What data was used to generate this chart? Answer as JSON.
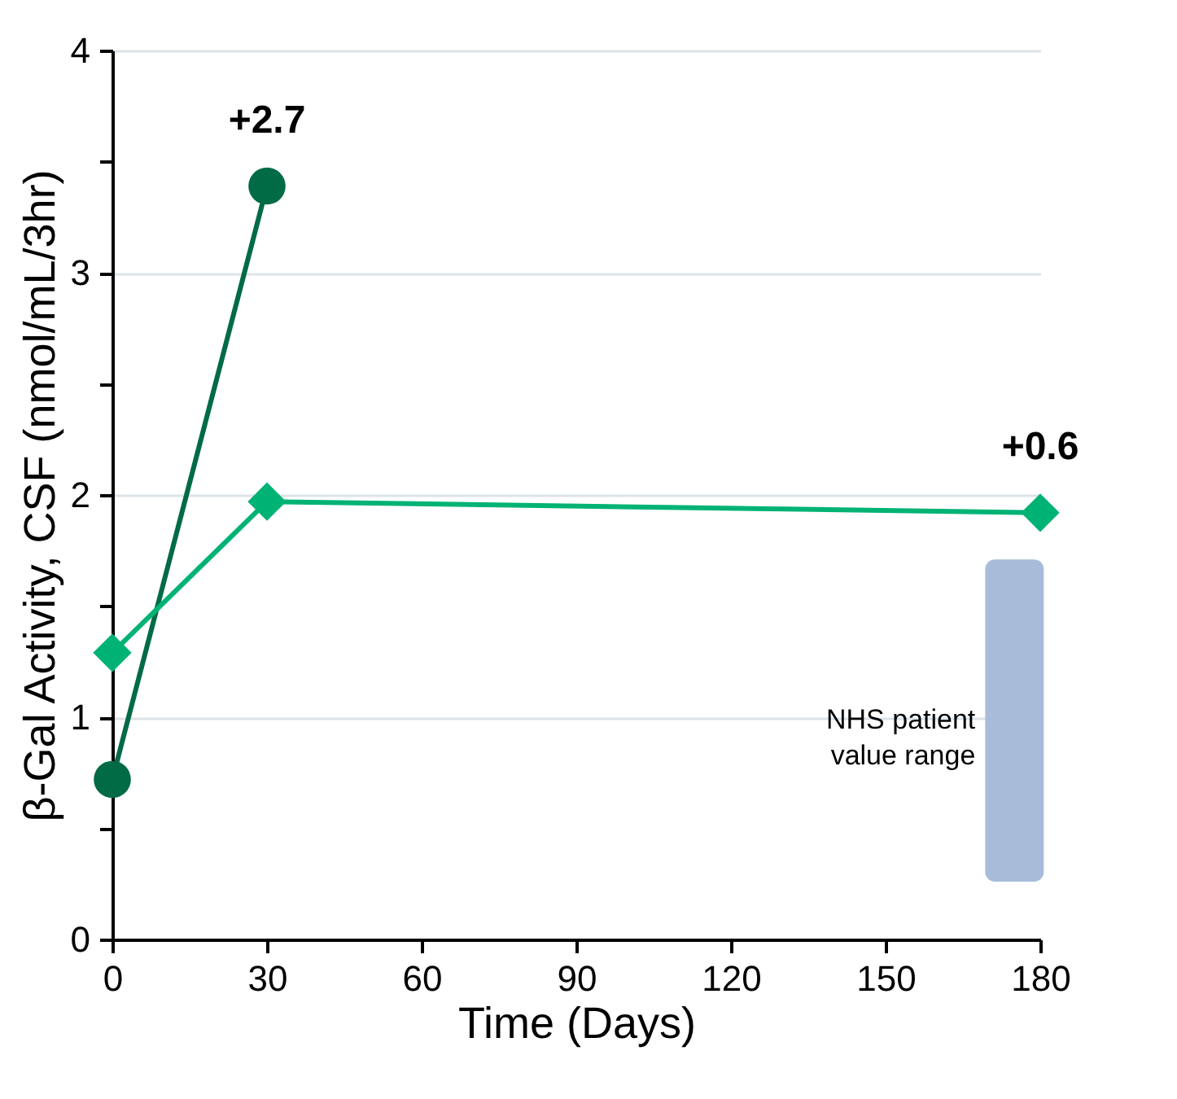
{
  "chart_data": {
    "type": "line",
    "xlabel": "Time (Days)",
    "ylabel": "β-Gal Activity, CSF (nmol/mL/3hr)",
    "xlim": [
      0,
      180
    ],
    "xticks": [
      0,
      30,
      60,
      90,
      120,
      150,
      180
    ],
    "ylim": [
      0,
      4
    ],
    "yticks": [
      0,
      {
        "value": 0.5,
        "label": null
      },
      1,
      {
        "value": 1.5,
        "label": null
      },
      2,
      {
        "value": 2.5,
        "label": null
      },
      3,
      {
        "value": 3.5,
        "label": null
      },
      4
    ],
    "grid": "y",
    "line_style": "solid",
    "series": [
      {
        "color": "#006b45",
        "marker": "circle",
        "x": [
          0,
          30
        ],
        "values": [
          0.72,
          3.39
        ]
      },
      {
        "color": "#00b374",
        "marker": "diamond",
        "x": [
          0,
          30,
          180
        ],
        "values": [
          1.29,
          1.97,
          1.92
        ]
      },
      {
        "type": "bar",
        "name": "NHS patient value range",
        "color": "#a7bcd9",
        "x": [
          175
        ],
        "base": [
          0.26
        ],
        "values": [
          1.45
        ]
      }
    ],
    "annotations": [
      {
        "text": "+2.7",
        "x": 30,
        "y": 3.39
      },
      {
        "text": "+0.6",
        "x": 180,
        "y": 1.92
      }
    ]
  }
}
